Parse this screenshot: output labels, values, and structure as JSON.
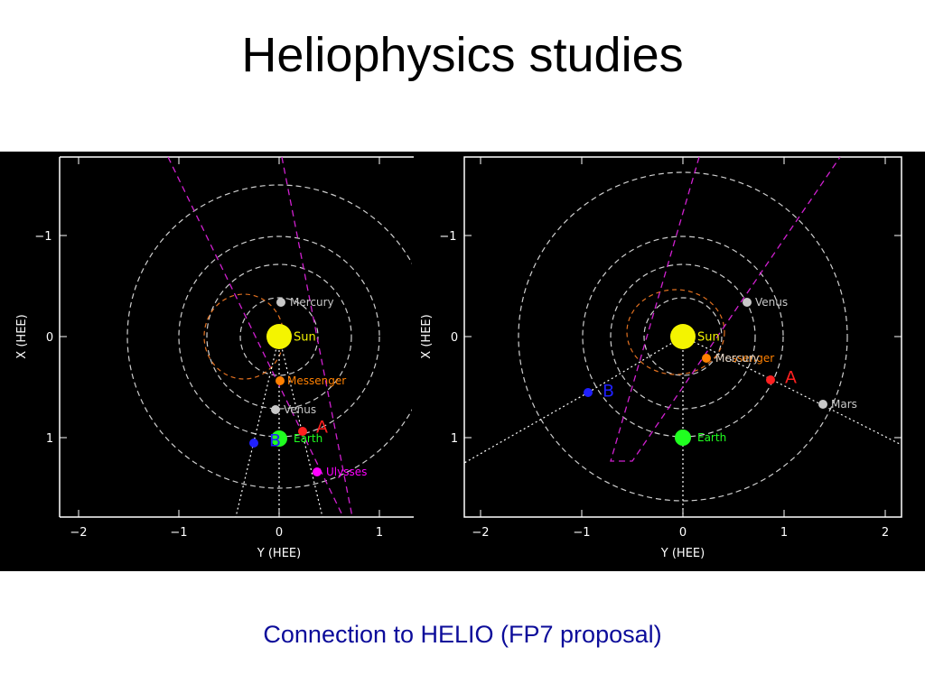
{
  "slide": {
    "title": "Heliophysics studies",
    "caption": "Connection to HELIO (FP7 proposal)"
  },
  "plots": [
    {
      "x_axis_label": "Y (HEE)",
      "y_axis_label": "X (HEE)",
      "x_ticks": [
        "−2",
        "−1",
        "0",
        "1"
      ],
      "y_ticks": [
        "−1",
        "0",
        "1"
      ],
      "bodies": [
        {
          "name": "Sun",
          "label": "Sun",
          "color": "#f4f400"
        },
        {
          "name": "Mercury",
          "label": "Mercury",
          "color": "#c8c8c8"
        },
        {
          "name": "Messenger",
          "label": "Messenger",
          "color": "#ff8000"
        },
        {
          "name": "Venus",
          "label": "Venus",
          "color": "#c8c8c8"
        },
        {
          "name": "Earth",
          "label": "Earth",
          "color": "#20ff20"
        },
        {
          "name": "STEREO-A",
          "label": "A",
          "color": "#ff2020"
        },
        {
          "name": "STEREO-B",
          "label": "B",
          "color": "#2020ff"
        },
        {
          "name": "Ulysses",
          "label": "Ulysses",
          "color": "#ff00ff"
        }
      ]
    },
    {
      "x_axis_label": "Y (HEE)",
      "y_axis_label": "X (HEE)",
      "x_ticks": [
        "−2",
        "−1",
        "0",
        "1",
        "2"
      ],
      "y_ticks": [
        "−1",
        "0",
        "1"
      ],
      "bodies": [
        {
          "name": "Sun",
          "label": "Sun",
          "color": "#f4f400"
        },
        {
          "name": "Venus",
          "label": "Venus",
          "color": "#c8c8c8"
        },
        {
          "name": "Messenger",
          "label": "Messenger",
          "color": "#ff8000"
        },
        {
          "name": "Mercury",
          "label": "Mercury",
          "color": "#c8c8c8"
        },
        {
          "name": "STEREO-A",
          "label": "A",
          "color": "#ff2020"
        },
        {
          "name": "STEREO-B",
          "label": "B",
          "color": "#2020ff"
        },
        {
          "name": "Mars",
          "label": "Mars",
          "color": "#c8c8c8"
        },
        {
          "name": "Earth",
          "label": "Earth",
          "color": "#20ff20"
        }
      ]
    }
  ]
}
